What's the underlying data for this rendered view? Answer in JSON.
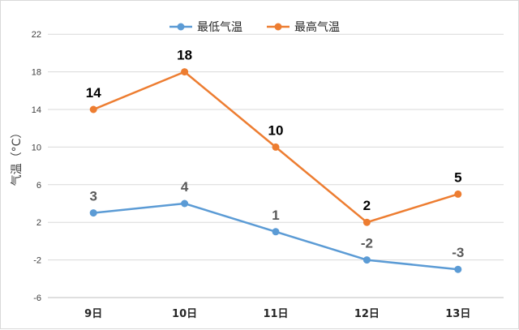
{
  "chart_data": {
    "type": "line",
    "categories": [
      "9日",
      "10日",
      "11日",
      "12日",
      "13日"
    ],
    "series": [
      {
        "name": "最低气温",
        "values": [
          3,
          4,
          1,
          -2,
          -3
        ],
        "color": "#5b9bd5",
        "label_color": "#595959"
      },
      {
        "name": "最高气温",
        "values": [
          14,
          18,
          10,
          2,
          5
        ],
        "color": "#ed7d31",
        "label_color": "#000000"
      }
    ],
    "ylabel": "气温（°C）",
    "ylim": [
      -6,
      24
    ],
    "yticks": [
      22,
      18,
      14,
      10,
      6,
      2,
      -2,
      -6
    ],
    "grid": true,
    "legend": "top-center",
    "data_labels": true
  }
}
